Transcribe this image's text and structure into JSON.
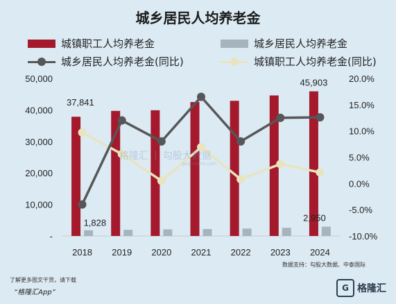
{
  "title": "城乡居民人均养老金",
  "legend": {
    "urban_bar": "城镇职工人均养老金",
    "rural_bar": "城乡居民人均养老金",
    "rural_line": "城乡居民人均养老金(同比)",
    "urban_line": "城镇职工人均养老金(同比)"
  },
  "colors": {
    "urban_bar": "#a5192c",
    "rural_bar": "#a6b4bd",
    "rural_line": "#555759",
    "urban_line": "#e8e4c0"
  },
  "watermark": {
    "logo_text": "格隆汇",
    "domain_text": "勾股大数据",
    "sub": "gogudata.com"
  },
  "source_text": "数据支持：勾股大数据、中泰国际",
  "footer": {
    "note": "了解更多图文干货，请下载",
    "app": "“格隆汇App”",
    "logo_text": "格隆汇",
    "logo_mark": "G"
  },
  "chart_data": {
    "type": "bar",
    "categories": [
      "2018",
      "2019",
      "2020",
      "2021",
      "2022",
      "2023",
      "2024"
    ],
    "series": [
      {
        "name": "城镇职工人均养老金",
        "type": "bar",
        "axis": "left",
        "values": [
          37841,
          39700,
          39900,
          42500,
          42900,
          44600,
          45903
        ]
      },
      {
        "name": "城乡居民人均养老金",
        "type": "bar",
        "axis": "left",
        "values": [
          1828,
          1950,
          2100,
          2200,
          2350,
          2600,
          2950
        ]
      },
      {
        "name": "城乡居民人均养老金(同比)",
        "type": "line",
        "axis": "right",
        "values": [
          -4.0,
          12.0,
          8.0,
          16.5,
          8.0,
          12.5,
          12.6
        ]
      },
      {
        "name": "城镇职工人均养老金(同比)",
        "type": "line",
        "axis": "right",
        "values": [
          9.7,
          5.6,
          0.5,
          6.9,
          0.8,
          3.7,
          2.1
        ]
      }
    ],
    "data_labels": [
      {
        "series": 0,
        "index": 0,
        "text": "37,841"
      },
      {
        "series": 0,
        "index": 6,
        "text": "45,903"
      },
      {
        "series": 1,
        "index": 0,
        "text": "1,828"
      },
      {
        "series": 1,
        "index": 6,
        "text": "2,950"
      }
    ],
    "y_left": {
      "ylim": [
        0,
        50000
      ],
      "ticks": [
        0,
        10000,
        20000,
        30000,
        40000,
        50000
      ],
      "tick_labels": [
        "-",
        "10,000",
        "20,000",
        "30,000",
        "40,000",
        "50,000"
      ]
    },
    "y_right": {
      "ylim": [
        -10,
        20
      ],
      "ticks": [
        -10,
        -5,
        0,
        5,
        10,
        15,
        20
      ],
      "tick_labels": [
        "-10.0%",
        "-5.0%",
        "0.0%",
        "5.0%",
        "10.0%",
        "15.0%",
        "20.0%"
      ]
    },
    "grid": false,
    "legend_position": "top"
  }
}
